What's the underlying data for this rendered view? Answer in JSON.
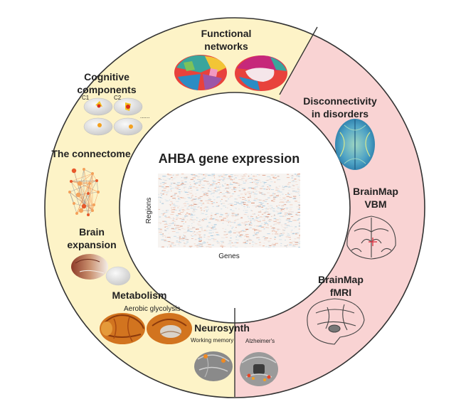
{
  "center": {
    "title": "AHBA gene expression",
    "ylabel": "Regions",
    "xlabel": "Genes"
  },
  "segments": {
    "functional_networks": [
      "Functional",
      "networks"
    ],
    "cognitive_components": [
      "Cognitive",
      "components"
    ],
    "cognitive_tags": [
      "C1",
      "C2",
      "......"
    ],
    "connectome": "The connectome",
    "brain_expansion": [
      "Brain",
      "expansion"
    ],
    "metabolism": "Metabolism",
    "aerobic_glycolysis": "Aerobic glycolysis",
    "neurosynth": "Neurosynth",
    "working_memory": "Working memory",
    "alzheimers": "Alzheimer's",
    "disconnectivity": [
      "Disconnectivity",
      "in disorders"
    ],
    "brainmap_vbm": [
      "BrainMap",
      "VBM"
    ],
    "brainmap_fmri": [
      "BrainMap",
      "fMRI"
    ]
  },
  "colors": {
    "healthy_zone": "#fdf3c7",
    "disorder_zone": "#f9d3d3",
    "ring_stroke": "#333333"
  }
}
